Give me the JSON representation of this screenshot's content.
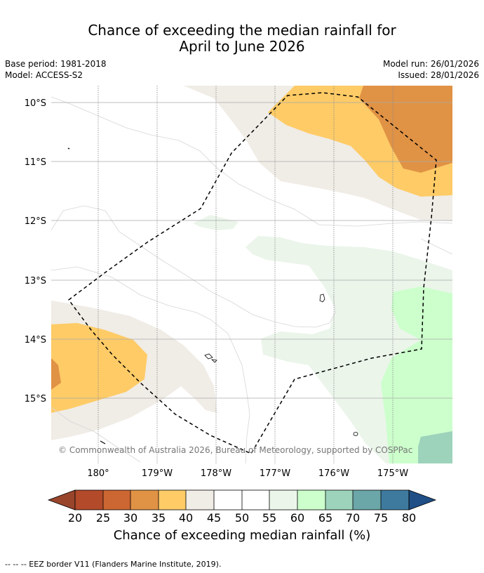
{
  "header": {
    "title_line1": "Chance of exceeding the median rainfall for",
    "title_line2": "April to June 2026",
    "base_period": "Base period: 1981-2018",
    "model": "Model: ACCESS-S2",
    "model_run": "Model run: 26/01/2026",
    "issued": "Issued: 28/01/2026"
  },
  "map": {
    "lat_labels": [
      "10°S",
      "11°S",
      "12°S",
      "13°S",
      "14°S",
      "15°S"
    ],
    "lon_labels": [
      "180°",
      "179°W",
      "178°W",
      "177°W",
      "176°W",
      "175°W"
    ],
    "copyright": "© Commonwealth of Australia 2026, Bureau of Meteorology, supported by COSPPac"
  },
  "colorbar": {
    "ticks": [
      "20",
      "25",
      "30",
      "35",
      "40",
      "45",
      "50",
      "55",
      "60",
      "65",
      "70",
      "75",
      "80"
    ],
    "colors": {
      "below_min": "#99452c",
      "c20_25": "#b34a2a",
      "c25_30": "#cc6633",
      "c30_35": "#e09245",
      "c35_40": "#fecb66",
      "c40_45": "#f0ece6",
      "c45_50": "#ffffff",
      "c50_55": "#ffffff",
      "c55_60": "#ebf5ea",
      "c60_65": "#ccffcc",
      "c65_70": "#9dd3bb",
      "c70_75": "#6ba6a8",
      "c75_80": "#3e7a9e",
      "above_max": "#1f4f86"
    },
    "label": "Chance of exceeding median rainfall (%)"
  },
  "footer": {
    "eez_note": "--  --  -- EEZ border V11 (Flanders Marine Institute, 2019)."
  }
}
